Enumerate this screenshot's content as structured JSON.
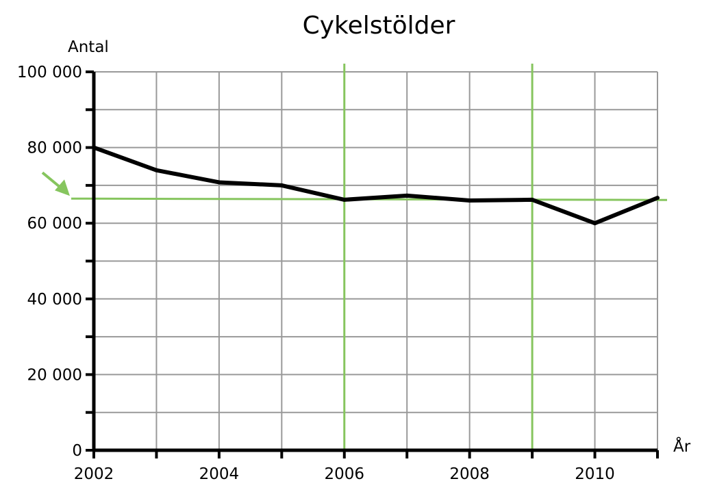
{
  "chart_data": {
    "type": "line",
    "title": "Cykelstölder",
    "xlabel": "År",
    "ylabel": "Antal",
    "x": [
      2002,
      2003,
      2004,
      2005,
      2006,
      2007,
      2008,
      2009,
      2010,
      2011
    ],
    "xlim": [
      2002,
      2011
    ],
    "ylim": [
      0,
      100000
    ],
    "grid": true,
    "x_tick_labels": [
      {
        "value": 2002,
        "label": "2002"
      },
      {
        "value": 2004,
        "label": "2004"
      },
      {
        "value": 2006,
        "label": "2006"
      },
      {
        "value": 2008,
        "label": "2008"
      },
      {
        "value": 2010,
        "label": "2010"
      }
    ],
    "y_tick_labels": [
      {
        "value": 0,
        "label": "0"
      },
      {
        "value": 20000,
        "label": "20 000"
      },
      {
        "value": 40000,
        "label": "40 000"
      },
      {
        "value": 60000,
        "label": "60 000"
      },
      {
        "value": 80000,
        "label": "80 000"
      },
      {
        "value": 100000,
        "label": "100 000"
      }
    ],
    "series": [
      {
        "values": [
          80000,
          74000,
          70800,
          70000,
          66200,
          67300,
          66000,
          66200,
          60000,
          66700
        ],
        "color": "#000000"
      }
    ],
    "annotations": {
      "reference_line_y": 66500,
      "reference_lines_x": [
        2006,
        2009
      ],
      "arrow_points_to_y": 66500,
      "annotation_color": "#86c55e"
    }
  }
}
